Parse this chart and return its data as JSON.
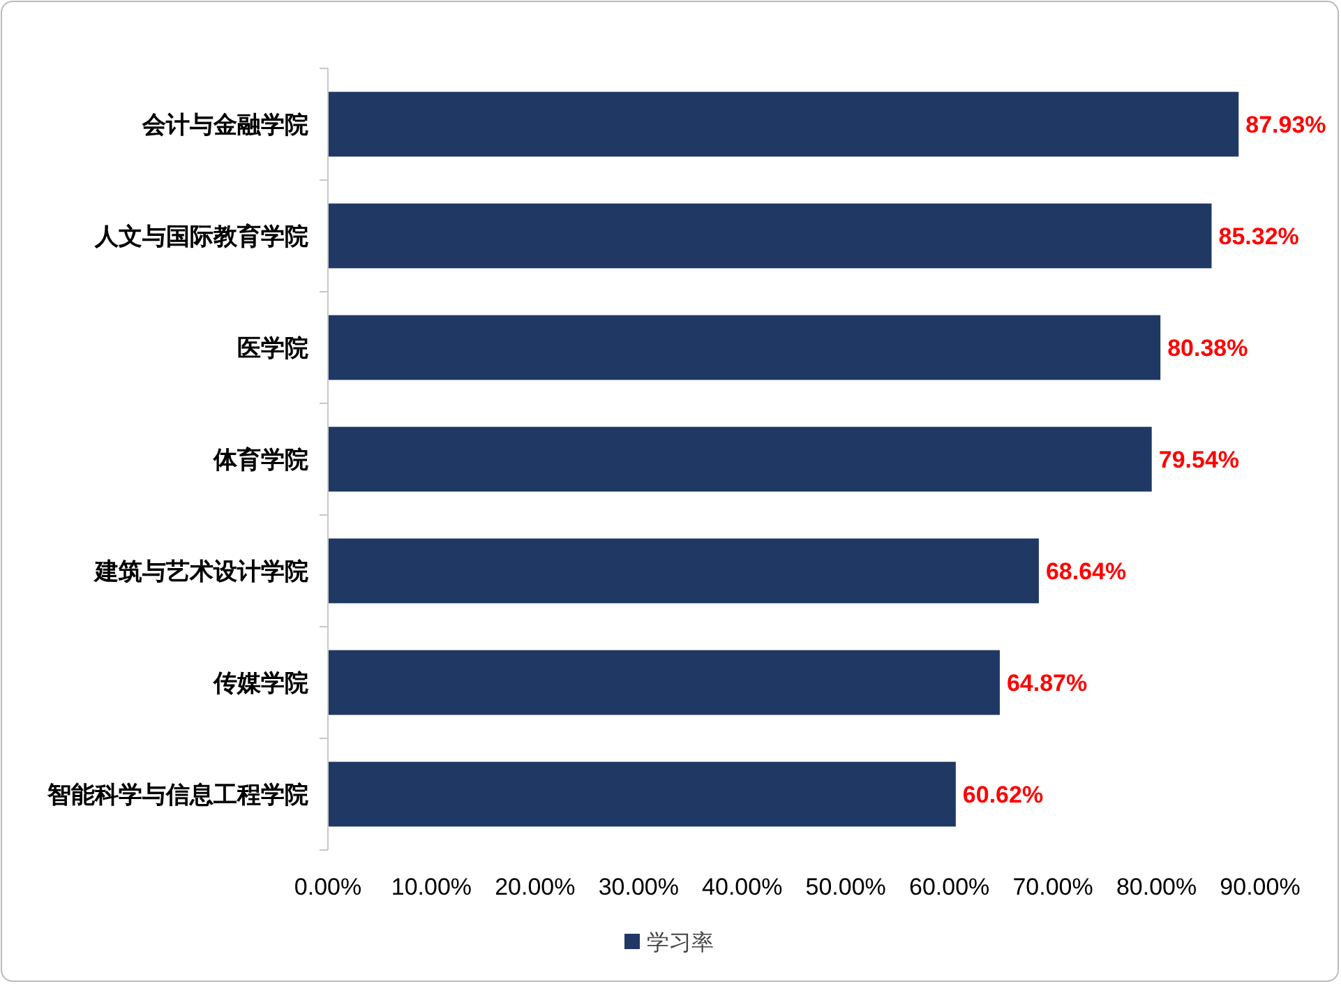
{
  "chart_data": {
    "type": "bar",
    "orientation": "horizontal",
    "categories": [
      "会计与金融学院",
      "人文与国际教育学院",
      "医学院",
      "体育学院",
      "建筑与艺术设计学院",
      "传媒学院",
      "智能科学与信息工程学院"
    ],
    "series": [
      {
        "name": "学习率",
        "color": "#203864",
        "values": [
          87.93,
          85.32,
          80.38,
          79.54,
          68.64,
          64.87,
          60.62
        ],
        "value_labels": [
          "87.93%",
          "85.32%",
          "80.38%",
          "79.54%",
          "68.64%",
          "64.87%",
          "60.62%"
        ]
      }
    ],
    "xlim": [
      0,
      90
    ],
    "xticks": [
      {
        "value": 0,
        "label": "0.00%"
      },
      {
        "value": 10,
        "label": "10.00%"
      },
      {
        "value": 20,
        "label": "20.00%"
      },
      {
        "value": 30,
        "label": "30.00%"
      },
      {
        "value": 40,
        "label": "40.00%"
      },
      {
        "value": 50,
        "label": "50.00%"
      },
      {
        "value": 60,
        "label": "60.00%"
      },
      {
        "value": 70,
        "label": "70.00%"
      },
      {
        "value": 80,
        "label": "80.00%"
      },
      {
        "value": 90,
        "label": "90.00%"
      }
    ],
    "grid": false,
    "legend": "bottom"
  }
}
